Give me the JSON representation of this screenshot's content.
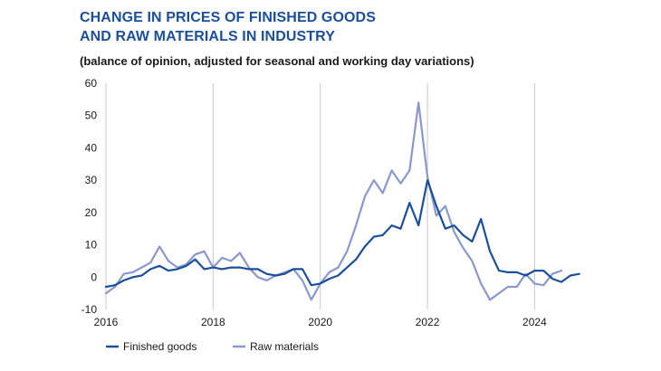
{
  "header": {
    "title_line1": "CHANGE IN PRICES OF FINISHED GOODS",
    "title_line2": "AND RAW MATERIALS IN INDUSTRY",
    "subtitle": "(balance of opinion, adjusted for seasonal and working day variations)"
  },
  "chart_data": {
    "type": "line",
    "title": "CHANGE IN PRICES OF FINISHED GOODS AND RAW MATERIALS IN INDUSTRY",
    "subtitle": "(balance of opinion, adjusted for seasonal and working day variations)",
    "xlabel": "",
    "ylabel": "",
    "xlim": [
      2016.0,
      2024.5
    ],
    "ylim": [
      -10,
      60
    ],
    "x_ticks": [
      2016,
      2018,
      2020,
      2022,
      2024
    ],
    "y_ticks": [
      -10,
      0,
      10,
      20,
      30,
      40,
      50,
      60
    ],
    "grid": "vertical lines at x ticks",
    "legend_position": "bottom-left",
    "x_start": 2016.0,
    "x_step_months": 2,
    "series": [
      {
        "name": "Finished goods",
        "color": "#1b4f9c",
        "values": [
          -3,
          -2.5,
          -1,
          0,
          0.5,
          2.5,
          3.5,
          2,
          2.5,
          3.5,
          5.5,
          2.5,
          3,
          2.5,
          3,
          3,
          2.5,
          2.5,
          1,
          0.5,
          1,
          2.5,
          2.5,
          -2.5,
          -2,
          -0.5,
          0.5,
          3,
          5.5,
          9.5,
          12.5,
          13,
          16,
          15,
          23,
          16,
          30,
          22,
          15,
          16,
          13,
          11,
          18,
          8,
          2,
          1.5,
          1.5,
          0.5,
          2,
          2,
          -0.5,
          -1.5,
          0.5,
          1
        ]
      },
      {
        "name": "Raw materials",
        "color": "#8b98cf",
        "values": [
          -5,
          -3,
          1,
          1.5,
          3,
          4.5,
          9.5,
          5,
          3,
          4,
          7,
          8,
          3,
          6,
          5,
          7.5,
          3,
          0,
          -1,
          0.5,
          1.5,
          2.5,
          -1,
          -7,
          -2,
          1.5,
          3,
          8,
          16,
          25,
          30,
          26,
          33,
          29,
          33,
          54,
          31,
          19,
          22,
          14,
          9,
          5,
          -2,
          -7,
          -5,
          -3,
          -3,
          1,
          -2,
          -2.5,
          1,
          2
        ]
      }
    ]
  }
}
